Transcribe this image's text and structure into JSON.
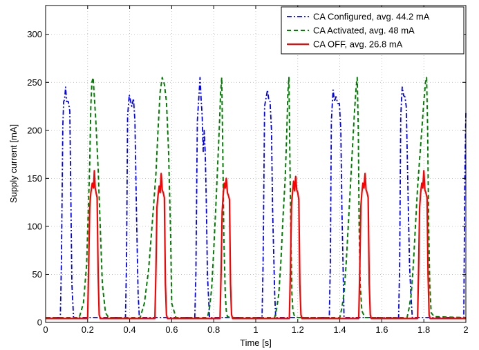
{
  "chart_data": {
    "type": "line",
    "xlabel": "Time [s]",
    "ylabel": "Supply current [mA]",
    "xlim": [
      0,
      2
    ],
    "ylim": [
      0,
      330
    ],
    "x_ticks": [
      "0",
      "0.2",
      "0.4",
      "0.6",
      "0.8",
      "1",
      "1.2",
      "1.4",
      "1.6",
      "1.8",
      "2"
    ],
    "y_ticks": [
      "0",
      "50",
      "100",
      "150",
      "200",
      "250",
      "300"
    ],
    "grid": true,
    "legend_position": "top-right",
    "series": [
      {
        "name": "CA Configured, avg. 44.2 mA",
        "color": "#0000ff",
        "line_style": "dash-dot",
        "x": [
          0,
          0.07,
          0.075,
          0.082,
          0.086,
          0.09,
          0.095,
          0.1,
          0.108,
          0.115,
          0.12,
          0.125,
          0.133,
          0.14,
          0.38,
          0.385,
          0.39,
          0.398,
          0.405,
          0.41,
          0.418,
          0.425,
          0.432,
          0.44,
          0.446,
          0.71,
          0.715,
          0.722,
          0.73,
          0.735,
          0.74,
          0.745,
          0.75,
          0.755,
          0.76,
          0.765,
          0.77,
          0.78,
          0.788,
          1.03,
          1.035,
          1.042,
          1.05,
          1.056,
          1.062,
          1.068,
          1.075,
          1.08,
          1.09,
          1.095,
          1.35,
          1.355,
          1.36,
          1.368,
          1.375,
          1.382,
          1.39,
          1.398,
          1.405,
          1.41,
          1.418,
          1.42,
          1.68,
          1.685,
          1.69,
          1.697,
          1.704,
          1.71,
          1.716,
          1.72,
          1.726,
          1.732,
          1.738,
          1.745,
          1.99,
          1.995,
          2.0
        ],
        "y": [
          5,
          5,
          60,
          205,
          230,
          232,
          245,
          230,
          230,
          220,
          130,
          40,
          5,
          5,
          5,
          60,
          215,
          237,
          230,
          225,
          233,
          210,
          120,
          30,
          5,
          5,
          50,
          210,
          237,
          255,
          232,
          215,
          178,
          200,
          175,
          120,
          50,
          5,
          5,
          5,
          60,
          225,
          235,
          242,
          232,
          230,
          200,
          120,
          30,
          5,
          5,
          60,
          210,
          242,
          230,
          235,
          228,
          228,
          200,
          120,
          30,
          5,
          5,
          60,
          215,
          245,
          236,
          235,
          225,
          185,
          120,
          60,
          30,
          5,
          5,
          150,
          218
        ]
      },
      {
        "name": "CA Activated, avg. 48 mA",
        "color": "#008000",
        "line_style": "dashed",
        "x": [
          0,
          0.16,
          0.18,
          0.195,
          0.205,
          0.21,
          0.215,
          0.22,
          0.226,
          0.232,
          0.24,
          0.25,
          0.26,
          0.27,
          0.285,
          0.3,
          0.45,
          0.47,
          0.49,
          0.51,
          0.525,
          0.535,
          0.545,
          0.555,
          0.565,
          0.575,
          0.585,
          0.595,
          0.6,
          0.62,
          0.77,
          0.78,
          0.79,
          0.8,
          0.81,
          0.82,
          0.828,
          0.833,
          0.838,
          0.843,
          0.848,
          0.855,
          0.86,
          0.865,
          0.88,
          1.09,
          1.1,
          1.11,
          1.12,
          1.13,
          1.14,
          1.148,
          1.153,
          1.158,
          1.163,
          1.168,
          1.172,
          1.177,
          1.185,
          1.2,
          1.4,
          1.41,
          1.42,
          1.43,
          1.44,
          1.45,
          1.46,
          1.47,
          1.478,
          1.483,
          1.488,
          1.492,
          1.497,
          1.505,
          1.52,
          1.72,
          1.73,
          1.74,
          1.75,
          1.76,
          1.77,
          1.78,
          1.79,
          1.8,
          1.808,
          1.813,
          1.818,
          1.823,
          1.828,
          1.835,
          1.85,
          2.0
        ],
        "y": [
          5,
          5,
          20,
          60,
          130,
          165,
          225,
          250,
          255,
          235,
          205,
          160,
          100,
          40,
          10,
          5,
          5,
          20,
          55,
          110,
          155,
          200,
          240,
          255,
          248,
          230,
          180,
          90,
          20,
          5,
          5,
          15,
          35,
          75,
          120,
          170,
          210,
          240,
          255,
          180,
          90,
          30,
          12,
          6,
          5,
          5,
          15,
          30,
          65,
          110,
          150,
          200,
          240,
          255,
          160,
          80,
          30,
          12,
          6,
          5,
          5,
          15,
          30,
          60,
          100,
          140,
          180,
          220,
          245,
          255,
          200,
          100,
          40,
          12,
          5,
          5,
          15,
          30,
          60,
          100,
          140,
          170,
          200,
          230,
          250,
          255,
          200,
          100,
          40,
          10,
          6,
          5
        ]
      },
      {
        "name": "CA OFF, avg. 26.8 mA",
        "color": "#ff0000",
        "line_style": "solid",
        "x": [
          0,
          0.2,
          0.205,
          0.21,
          0.215,
          0.222,
          0.228,
          0.232,
          0.236,
          0.24,
          0.245,
          0.25,
          0.255,
          0.26,
          0.265,
          0.27,
          0.52,
          0.525,
          0.53,
          0.535,
          0.54,
          0.545,
          0.55,
          0.555,
          0.56,
          0.565,
          0.57,
          0.575,
          0.58,
          0.585,
          0.59,
          0.83,
          0.835,
          0.84,
          0.845,
          0.85,
          0.855,
          0.86,
          0.865,
          0.87,
          0.875,
          0.88,
          0.885,
          0.89,
          0.895,
          0.9,
          1.16,
          1.165,
          1.17,
          1.175,
          1.18,
          1.185,
          1.19,
          1.195,
          1.2,
          1.205,
          1.21,
          1.215,
          1.22,
          1.225,
          1.23,
          1.49,
          1.495,
          1.5,
          1.505,
          1.51,
          1.515,
          1.52,
          1.525,
          1.53,
          1.535,
          1.54,
          1.545,
          1.55,
          1.555,
          1.56,
          1.77,
          1.775,
          1.78,
          1.785,
          1.79,
          1.795,
          1.8,
          1.805,
          1.81,
          1.815,
          1.82,
          1.825,
          1.83,
          1.835,
          1.84,
          2.0
        ],
        "y": [
          4,
          4,
          60,
          120,
          135,
          145,
          140,
          158,
          140,
          135,
          130,
          50,
          8,
          4,
          4,
          4,
          4,
          55,
          120,
          132,
          142,
          135,
          155,
          138,
          135,
          130,
          40,
          8,
          4,
          4,
          4,
          4,
          50,
          115,
          133,
          145,
          140,
          150,
          135,
          132,
          128,
          40,
          8,
          4,
          4,
          4,
          4,
          55,
          122,
          135,
          147,
          137,
          152,
          138,
          135,
          128,
          40,
          8,
          4,
          4,
          4,
          4,
          55,
          120,
          135,
          145,
          140,
          155,
          138,
          135,
          130,
          40,
          8,
          4,
          4,
          4,
          4,
          55,
          120,
          135,
          145,
          140,
          158,
          138,
          135,
          130,
          50,
          8,
          4,
          4,
          4,
          4
        ]
      }
    ]
  }
}
